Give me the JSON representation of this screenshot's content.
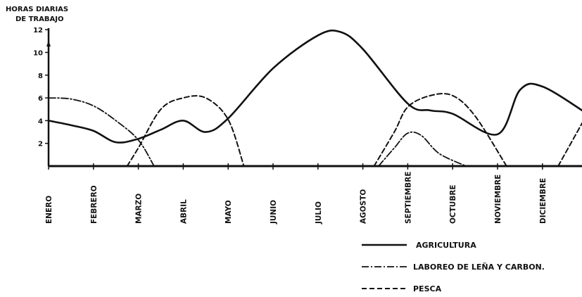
{
  "chart_data": {
    "type": "line",
    "ylabel_lines": [
      "HORAS DIARIAS",
      "DE TRABAJO"
    ],
    "yticks": [
      2,
      4,
      6,
      8,
      10,
      12
    ],
    "ylim": [
      0,
      12
    ],
    "categories": [
      "ENERO",
      "FEBRERO",
      "MARZO",
      "ABRIL",
      "MAYO",
      "JUNIO",
      "JULIO",
      "AGOSTO",
      "SEPTIEMBRE",
      "OCTUBRE",
      "NOVIEMBRE",
      "DICIEMBRE"
    ],
    "grid": false,
    "legend_position": "bottom-right",
    "series": [
      {
        "name": "AGRICULTURA",
        "style": "solid",
        "points": [
          [
            0,
            4
          ],
          [
            0.5,
            3.6
          ],
          [
            1,
            3.1
          ],
          [
            1.5,
            2.1
          ],
          [
            2,
            2.4
          ],
          [
            2.5,
            3.2
          ],
          [
            3,
            4.0
          ],
          [
            3.5,
            3.0
          ],
          [
            4,
            4.2
          ],
          [
            5,
            8.6
          ],
          [
            6,
            11.5
          ],
          [
            6.5,
            11.8
          ],
          [
            7,
            10.3
          ],
          [
            8,
            5.5
          ],
          [
            8.5,
            4.9
          ],
          [
            9,
            4.6
          ],
          [
            10,
            2.8
          ],
          [
            10.5,
            6.7
          ],
          [
            11,
            7.0
          ],
          [
            12,
            4.6
          ]
        ]
      },
      {
        "name": "LABOREO DE LEÑA Y CARBON.",
        "style": "dash-dot",
        "points": [
          [
            0,
            6
          ],
          [
            0.5,
            5.9
          ],
          [
            1,
            5.3
          ],
          [
            1.5,
            4.0
          ],
          [
            2,
            2.3
          ],
          [
            2.35,
            0
          ]
        ],
        "points_2": [
          [
            7.35,
            0
          ],
          [
            7.7,
            1.6
          ],
          [
            8,
            2.9
          ],
          [
            8.3,
            2.7
          ],
          [
            8.7,
            1.1
          ],
          [
            9.3,
            0
          ]
        ]
      },
      {
        "name": "PESCA",
        "style": "dashed",
        "points": [
          [
            1.75,
            0
          ],
          [
            2,
            1.6
          ],
          [
            2.5,
            5.0
          ],
          [
            3,
            6.0
          ],
          [
            3.5,
            6.0
          ],
          [
            4,
            4.1
          ],
          [
            4.35,
            0
          ]
        ],
        "points_2": [
          [
            7.25,
            0
          ],
          [
            7.7,
            3.0
          ],
          [
            8,
            5.2
          ],
          [
            8.5,
            6.2
          ],
          [
            9,
            6.2
          ],
          [
            9.5,
            4.4
          ],
          [
            10.2,
            0
          ]
        ],
        "points_3": [
          [
            11.35,
            0
          ],
          [
            12,
            4.6
          ]
        ]
      }
    ]
  }
}
